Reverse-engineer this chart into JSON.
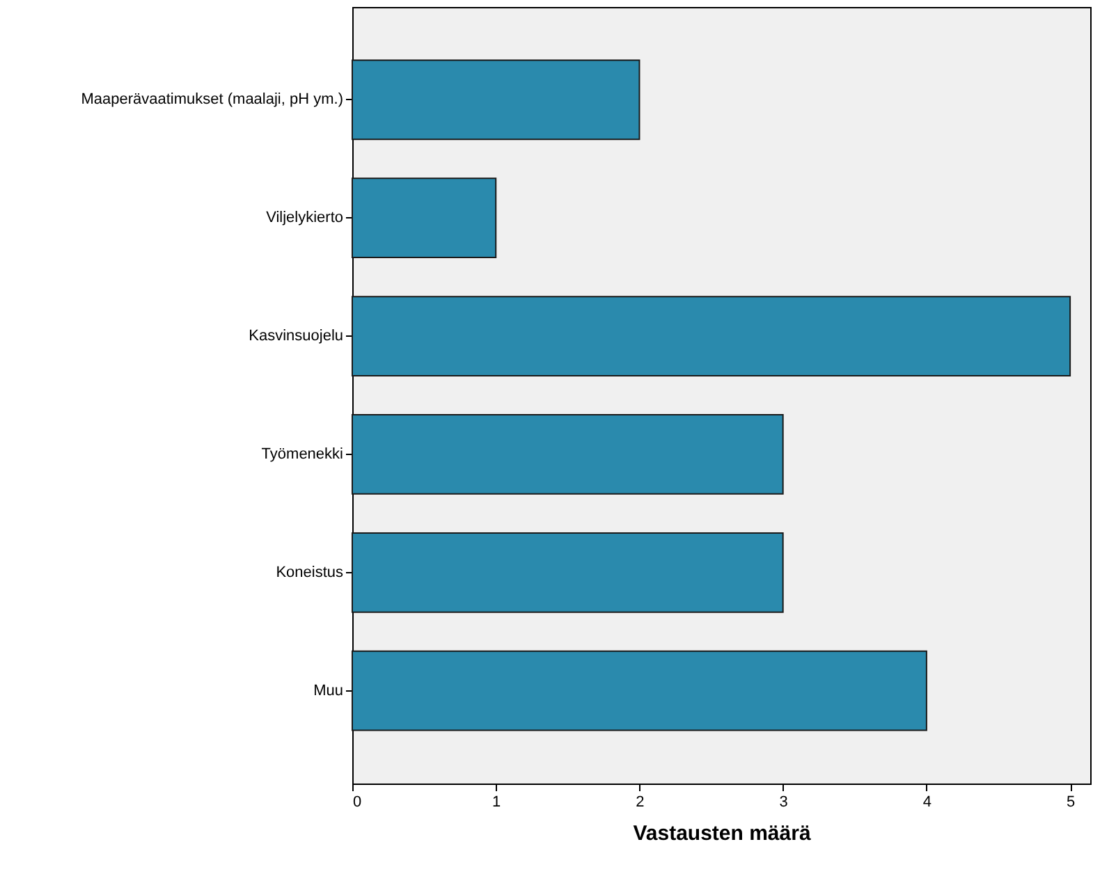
{
  "chart_data": {
    "type": "bar",
    "orientation": "horizontal",
    "xlabel": "Vastausten määrä",
    "categories": [
      "Maaperävaatimukset (maalaji, pH ym.)",
      "Viljelykierto",
      "Kasvinsuojelu",
      "Työmenekki",
      "Koneistus",
      "Muu"
    ],
    "values": [
      2,
      1,
      5,
      3,
      3,
      4
    ],
    "color": "#2a8aad",
    "xlim": [
      0,
      5.14
    ],
    "xticks": [
      0,
      1,
      2,
      3,
      4,
      5
    ],
    "grid": false
  }
}
